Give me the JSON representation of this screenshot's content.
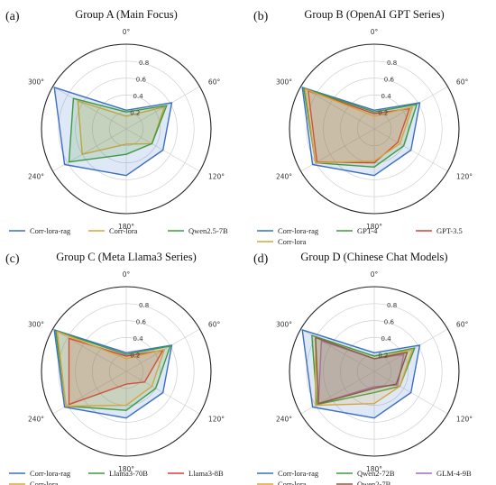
{
  "chart_data": [
    {
      "type": "radar",
      "panel_label": "(a)",
      "title": "Group A (Main Focus)",
      "angle_ticks": [
        "0°",
        "60°",
        "120°",
        "180°",
        "240°",
        "300°"
      ],
      "radial_ticks": [
        "0.2",
        "0.4",
        "0.6",
        "0.8"
      ],
      "rlim": [
        0,
        1
      ],
      "axis_angles_deg": [
        0,
        60,
        120,
        180,
        240,
        300
      ],
      "series": [
        {
          "name": "Corr-lora-rag",
          "color": "#3b6fc4",
          "values": [
            0.22,
            0.62,
            0.5,
            0.55,
            0.84,
            0.98
          ]
        },
        {
          "name": "Corr-lora",
          "color": "#d9a53a",
          "values": [
            0.15,
            0.52,
            0.35,
            0.18,
            0.6,
            0.66
          ]
        },
        {
          "name": "Qwen2.5-7B",
          "color": "#3e9a3e",
          "values": [
            0.2,
            0.55,
            0.35,
            0.3,
            0.78,
            0.72
          ]
        }
      ],
      "legend": {
        "placement": "bottom",
        "columns": 3,
        "entries": [
          "Corr-lora-rag",
          "Corr-lora",
          "Qwen2.5-7B"
        ]
      }
    },
    {
      "type": "radar",
      "panel_label": "(b)",
      "title": "Group B (OpenAI GPT Series)",
      "angle_ticks": [
        "0°",
        "60°",
        "120°",
        "180°",
        "240°",
        "300°"
      ],
      "radial_ticks": [
        "0.2",
        "0.4",
        "0.6",
        "0.8"
      ],
      "rlim": [
        0,
        1
      ],
      "axis_angles_deg": [
        0,
        60,
        120,
        180,
        240,
        300
      ],
      "series": [
        {
          "name": "Corr-lora-rag",
          "color": "#3b6fc4",
          "values": [
            0.22,
            0.62,
            0.5,
            0.55,
            0.84,
            0.98
          ]
        },
        {
          "name": "GPT-4",
          "color": "#3e9a3e",
          "values": [
            0.2,
            0.58,
            0.4,
            0.45,
            0.8,
            0.96
          ]
        },
        {
          "name": "GPT-3.5",
          "color": "#d0413a",
          "values": [
            0.18,
            0.48,
            0.32,
            0.4,
            0.78,
            0.9
          ]
        },
        {
          "name": "Corr-lora",
          "color": "#d9a53a",
          "values": [
            0.15,
            0.52,
            0.35,
            0.38,
            0.8,
            0.94
          ]
        }
      ],
      "legend": {
        "placement": "bottom",
        "columns": 3,
        "entries": [
          "Corr-lora-rag",
          "GPT-4",
          "GPT-3.5",
          "Corr-lora"
        ]
      }
    },
    {
      "type": "radar",
      "panel_label": "(c)",
      "title": "Group C (Meta Llama3 Series)",
      "angle_ticks": [
        "0°",
        "60°",
        "120°",
        "180°",
        "240°",
        "300°"
      ],
      "radial_ticks": [
        "0.2",
        "0.4",
        "0.6",
        "0.8"
      ],
      "rlim": [
        0,
        1
      ],
      "axis_angles_deg": [
        0,
        60,
        120,
        180,
        240,
        300
      ],
      "series": [
        {
          "name": "Corr-lora-rag",
          "color": "#3b6fc4",
          "values": [
            0.22,
            0.62,
            0.5,
            0.55,
            0.84,
            0.98
          ]
        },
        {
          "name": "Llama3-70B",
          "color": "#3e9a3e",
          "values": [
            0.2,
            0.6,
            0.4,
            0.46,
            0.82,
            0.96
          ]
        },
        {
          "name": "Llama3-8B",
          "color": "#d0413a",
          "values": [
            0.18,
            0.5,
            0.25,
            0.15,
            0.78,
            0.78
          ]
        },
        {
          "name": "Corr-lora",
          "color": "#d9a53a",
          "values": [
            0.15,
            0.52,
            0.35,
            0.4,
            0.82,
            0.94
          ]
        }
      ],
      "legend": {
        "placement": "bottom",
        "columns": 3,
        "entries": [
          "Corr-lora-rag",
          "Llama3-70B",
          "Llama3-8B",
          "Corr-lora"
        ]
      }
    },
    {
      "type": "radar",
      "panel_label": "(d)",
      "title": "Group D (Chinese Chat Models)",
      "angle_ticks": [
        "0°",
        "60°",
        "120°",
        "180°",
        "240°",
        "300°"
      ],
      "radial_ticks": [
        "0.2",
        "0.4",
        "0.6",
        "0.8"
      ],
      "rlim": [
        0,
        1
      ],
      "axis_angles_deg": [
        0,
        60,
        120,
        180,
        240,
        300
      ],
      "series": [
        {
          "name": "Corr-lora-rag",
          "color": "#3b6fc4",
          "values": [
            0.22,
            0.62,
            0.5,
            0.55,
            0.84,
            0.98
          ]
        },
        {
          "name": "Qwen2-72B",
          "color": "#3e9a3e",
          "values": [
            0.18,
            0.55,
            0.35,
            0.25,
            0.78,
            0.85
          ]
        },
        {
          "name": "GLM-4-9B",
          "color": "#a16bc6",
          "values": [
            0.15,
            0.4,
            0.32,
            0.18,
            0.76,
            0.72
          ]
        },
        {
          "name": "Corr-lora",
          "color": "#d9a53a",
          "values": [
            0.15,
            0.52,
            0.35,
            0.38,
            0.8,
            0.8
          ]
        },
        {
          "name": "Qwen2-7B",
          "color": "#8c5a3c",
          "values": [
            0.15,
            0.45,
            0.3,
            0.2,
            0.76,
            0.8
          ]
        }
      ],
      "legend": {
        "placement": "bottom",
        "columns": 3,
        "entries": [
          "Corr-lora-rag",
          "Qwen2-72B",
          "GLM-4-9B",
          "Corr-lora",
          "Qwen2-7B"
        ]
      }
    }
  ]
}
